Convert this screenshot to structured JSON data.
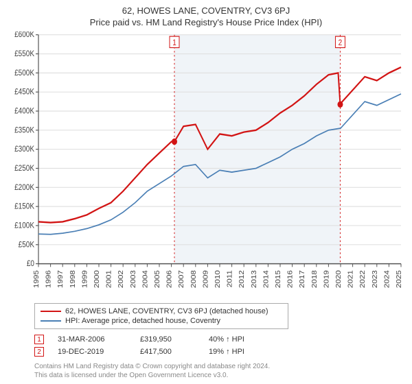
{
  "title": "62, HOWES LANE, COVENTRY, CV3 6PJ",
  "subtitle": "Price paid vs. HM Land Registry's House Price Index (HPI)",
  "chart": {
    "type": "line",
    "background_color": "#ffffff",
    "grid_color": "#e0e0e0",
    "axis_color": "#555555",
    "tick_fontsize": 10,
    "tick_color": "#444444",
    "ylim": [
      0,
      600000
    ],
    "ytick_step": 50000,
    "ytick_labels": [
      "£0",
      "£50K",
      "£100K",
      "£150K",
      "£200K",
      "£250K",
      "£300K",
      "£350K",
      "£400K",
      "£450K",
      "£500K",
      "£550K",
      "£600K"
    ],
    "xlim": [
      1995,
      2025
    ],
    "xtick_step": 1,
    "xtick_labels": [
      "1995",
      "1996",
      "1997",
      "1998",
      "1999",
      "2000",
      "2001",
      "2002",
      "2003",
      "2004",
      "2005",
      "2006",
      "2007",
      "2008",
      "2009",
      "2010",
      "2011",
      "2012",
      "2013",
      "2014",
      "2015",
      "2016",
      "2017",
      "2018",
      "2019",
      "2020",
      "2021",
      "2022",
      "2023",
      "2024",
      "2025"
    ],
    "shaded_band": {
      "from_year": 2006.25,
      "to_year": 2019.97,
      "fill": "#f0f4f8"
    },
    "series": [
      {
        "name": "property",
        "label": "62, HOWES LANE, COVENTRY, CV3 6PJ (detached house)",
        "color": "#d21414",
        "line_width": 2,
        "points": [
          [
            1995,
            110000
          ],
          [
            1996,
            108000
          ],
          [
            1997,
            110000
          ],
          [
            1998,
            118000
          ],
          [
            1999,
            128000
          ],
          [
            2000,
            145000
          ],
          [
            2001,
            160000
          ],
          [
            2002,
            190000
          ],
          [
            2003,
            225000
          ],
          [
            2004,
            260000
          ],
          [
            2005,
            290000
          ],
          [
            2006,
            320000
          ],
          [
            2006.25,
            319950
          ],
          [
            2007,
            360000
          ],
          [
            2008,
            365000
          ],
          [
            2009,
            300000
          ],
          [
            2010,
            340000
          ],
          [
            2011,
            335000
          ],
          [
            2012,
            345000
          ],
          [
            2013,
            350000
          ],
          [
            2014,
            370000
          ],
          [
            2015,
            395000
          ],
          [
            2016,
            415000
          ],
          [
            2017,
            440000
          ],
          [
            2018,
            470000
          ],
          [
            2019,
            495000
          ],
          [
            2019.8,
            500000
          ],
          [
            2019.97,
            417500
          ],
          [
            2020,
            420000
          ],
          [
            2021,
            455000
          ],
          [
            2022,
            490000
          ],
          [
            2023,
            480000
          ],
          [
            2024,
            500000
          ],
          [
            2025,
            515000
          ]
        ]
      },
      {
        "name": "hpi",
        "label": "HPI: Average price, detached house, Coventry",
        "color": "#4a7fb5",
        "line_width": 1.5,
        "points": [
          [
            1995,
            78000
          ],
          [
            1996,
            77000
          ],
          [
            1997,
            80000
          ],
          [
            1998,
            85000
          ],
          [
            1999,
            92000
          ],
          [
            2000,
            102000
          ],
          [
            2001,
            115000
          ],
          [
            2002,
            135000
          ],
          [
            2003,
            160000
          ],
          [
            2004,
            190000
          ],
          [
            2005,
            210000
          ],
          [
            2006,
            230000
          ],
          [
            2007,
            255000
          ],
          [
            2008,
            260000
          ],
          [
            2009,
            225000
          ],
          [
            2010,
            245000
          ],
          [
            2011,
            240000
          ],
          [
            2012,
            245000
          ],
          [
            2013,
            250000
          ],
          [
            2014,
            265000
          ],
          [
            2015,
            280000
          ],
          [
            2016,
            300000
          ],
          [
            2017,
            315000
          ],
          [
            2018,
            335000
          ],
          [
            2019,
            350000
          ],
          [
            2020,
            355000
          ],
          [
            2021,
            390000
          ],
          [
            2022,
            425000
          ],
          [
            2023,
            415000
          ],
          [
            2024,
            430000
          ],
          [
            2025,
            445000
          ]
        ]
      }
    ],
    "sale_markers": [
      {
        "id": "1",
        "year": 2006.25,
        "value": 319950,
        "color": "#d21414"
      },
      {
        "id": "2",
        "year": 2019.97,
        "value": 417500,
        "color": "#d21414"
      }
    ]
  },
  "legend": {
    "items": [
      {
        "color": "#d21414",
        "label": "62, HOWES LANE, COVENTRY, CV3 6PJ (detached house)"
      },
      {
        "color": "#4a7fb5",
        "label": "HPI: Average price, detached house, Coventry"
      }
    ]
  },
  "sales": [
    {
      "marker": "1",
      "marker_color": "#d21414",
      "date": "31-MAR-2006",
      "price": "£319,950",
      "diff": "40% ↑ HPI"
    },
    {
      "marker": "2",
      "marker_color": "#d21414",
      "date": "19-DEC-2019",
      "price": "£417,500",
      "diff": "19% ↑ HPI"
    }
  ],
  "footer_line1": "Contains HM Land Registry data © Crown copyright and database right 2024.",
  "footer_line2": "This data is licensed under the Open Government Licence v3.0."
}
